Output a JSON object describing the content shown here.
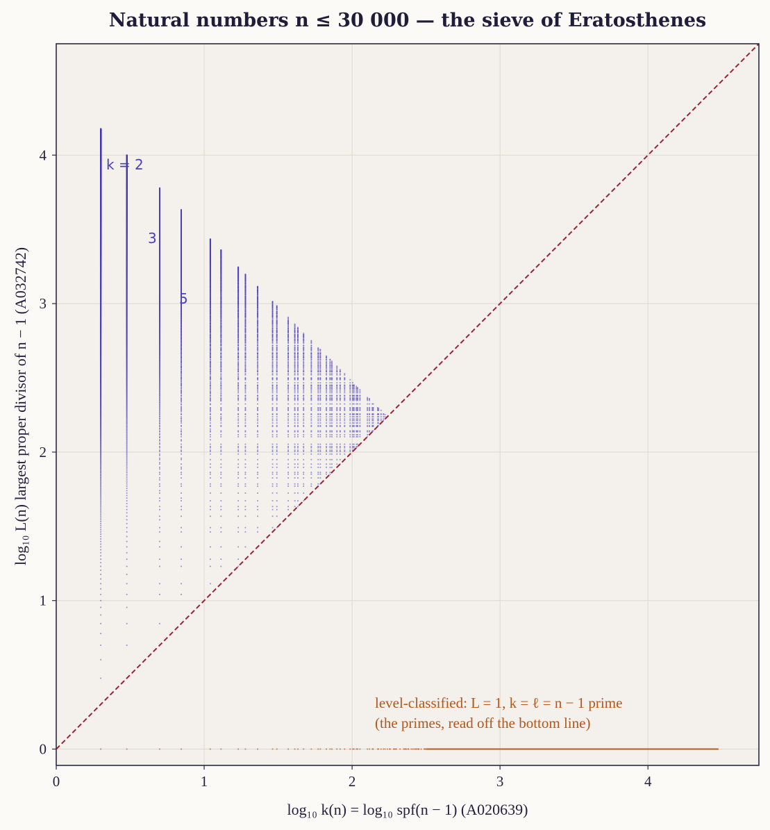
{
  "chart_data": {
    "type": "scatter",
    "title": "Natural numbers n ≤ 30 000 — the sieve of Eratosthenes",
    "xlabel": "log₁₀ k(n) = log₁₀ spf(n − 1)   (A020639)",
    "ylabel": "log₁₀ L(n)   largest proper divisor of n − 1   (A032742)",
    "xlim": [
      0,
      4.75
    ],
    "ylim": [
      -0.11,
      4.75
    ],
    "x_ticks": [
      "0",
      "1",
      "2",
      "3",
      "4"
    ],
    "y_ticks": [
      "0",
      "1",
      "2",
      "3",
      "4"
    ],
    "grid": true,
    "n_max": 30000,
    "series": [
      {
        "role": "composites",
        "color": "#4a3fbf",
        "columns": [
          {
            "k": 2,
            "x": 0.301,
            "y_max": 4.18
          },
          {
            "k": 3,
            "x": 0.477,
            "y_max": 4.0
          },
          {
            "k": 5,
            "x": 0.699,
            "y_max": 3.78
          },
          {
            "k": 7,
            "x": 0.845,
            "y_max": 3.63
          },
          {
            "k": 11,
            "x": 1.041,
            "y_max": 3.44
          },
          {
            "k": 13,
            "x": 1.114,
            "y_max": 3.36
          },
          {
            "k": 17,
            "x": 1.23,
            "y_max": 3.25
          },
          {
            "k": 19,
            "x": 1.279,
            "y_max": 3.2
          },
          {
            "k": 23,
            "x": 1.362,
            "y_max": 3.11
          },
          {
            "k": 29,
            "x": 1.462,
            "y_max": 3.01
          },
          {
            "k": 31,
            "x": 1.491,
            "y_max": 2.98
          },
          {
            "k": 37,
            "x": 1.568,
            "y_max": 2.91
          },
          {
            "k": 41,
            "x": 1.613,
            "y_max": 2.86
          },
          {
            "k": 43,
            "x": 1.633,
            "y_max": 2.84
          }
        ]
      },
      {
        "role": "primes",
        "color": "#b3561a",
        "y": 0,
        "x_range": [
          0.301,
          4.477
        ]
      }
    ],
    "diagonal": {
      "equation": "y = x",
      "color": "#9b2335",
      "style": "dashed"
    },
    "annotations": {
      "k2": "k = 2",
      "k3": "3",
      "k5": "5",
      "primes_line1": "level-classified: L = 1, k = ℓ = n − 1 prime",
      "primes_line2": "(the primes, read off the bottom line)"
    }
  },
  "colors": {
    "background": "#fbfaf7",
    "plot_background": "#f4f1ec",
    "axis_frame": "#2a2840",
    "grid": "#dcd8d0",
    "text": "#23213d",
    "composites": "#4a3fbf",
    "primes": "#b3561a",
    "diagonal": "#9b2335"
  }
}
